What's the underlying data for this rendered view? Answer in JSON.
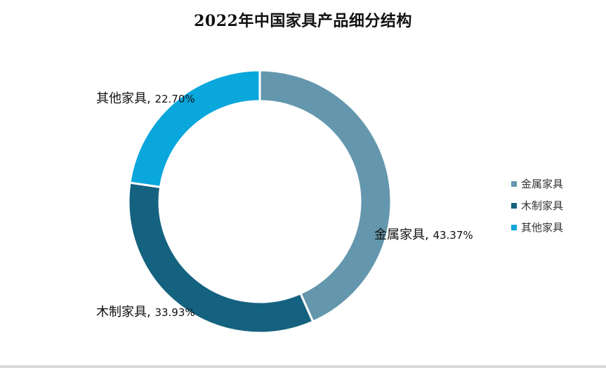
{
  "chart_data": {
    "type": "pie",
    "title": "2022年中国家具产品细分结构",
    "donut": true,
    "legend_position": "right",
    "slices": [
      {
        "label": "金属家具",
        "value": 43.37,
        "value_text": "43.37%",
        "color": "#6497ad"
      },
      {
        "label": "木制家具",
        "value": 33.93,
        "value_text": "33.93%",
        "color": "#14627f"
      },
      {
        "label": "其他家具",
        "value": 22.7,
        "value_text": "22.70%",
        "color": "#0aa7dc"
      }
    ]
  }
}
